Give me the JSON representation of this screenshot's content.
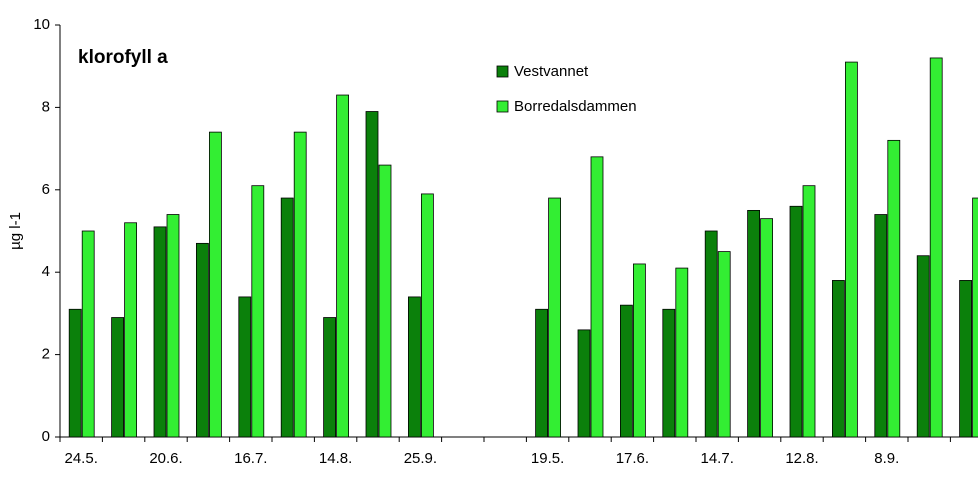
{
  "chart_data": {
    "type": "bar",
    "title": "klorofyll a",
    "y_label": "µg l-1",
    "categories": [
      "24.5.",
      null,
      "20.6.",
      null,
      "16.7.",
      null,
      "14.8.",
      null,
      "25.9.",
      null,
      null,
      "19.5.",
      null,
      "17.6.",
      null,
      "14.7.",
      null,
      "12.8.",
      null,
      "8.9.",
      null,
      null
    ],
    "series": [
      {
        "name": "Vestvannet",
        "color": "#0b800b",
        "values": [
          3.1,
          2.9,
          5.1,
          4.7,
          3.4,
          5.8,
          2.9,
          7.9,
          3.4,
          null,
          null,
          3.1,
          2.6,
          3.2,
          3.1,
          5.0,
          5.5,
          5.6,
          3.8,
          5.4,
          4.4,
          3.8
        ]
      },
      {
        "name": "Borredalsdammen",
        "color": "#33ee33",
        "values": [
          5.0,
          5.2,
          5.4,
          7.4,
          6.1,
          7.4,
          8.3,
          6.6,
          5.9,
          null,
          null,
          5.8,
          6.8,
          4.2,
          4.1,
          4.5,
          5.3,
          6.1,
          9.1,
          7.2,
          9.2,
          5.8
        ]
      }
    ],
    "ylim": [
      0,
      10
    ],
    "yticks": [
      0,
      2,
      4,
      6,
      8,
      10
    ],
    "grid": false,
    "legend": "top-center"
  }
}
